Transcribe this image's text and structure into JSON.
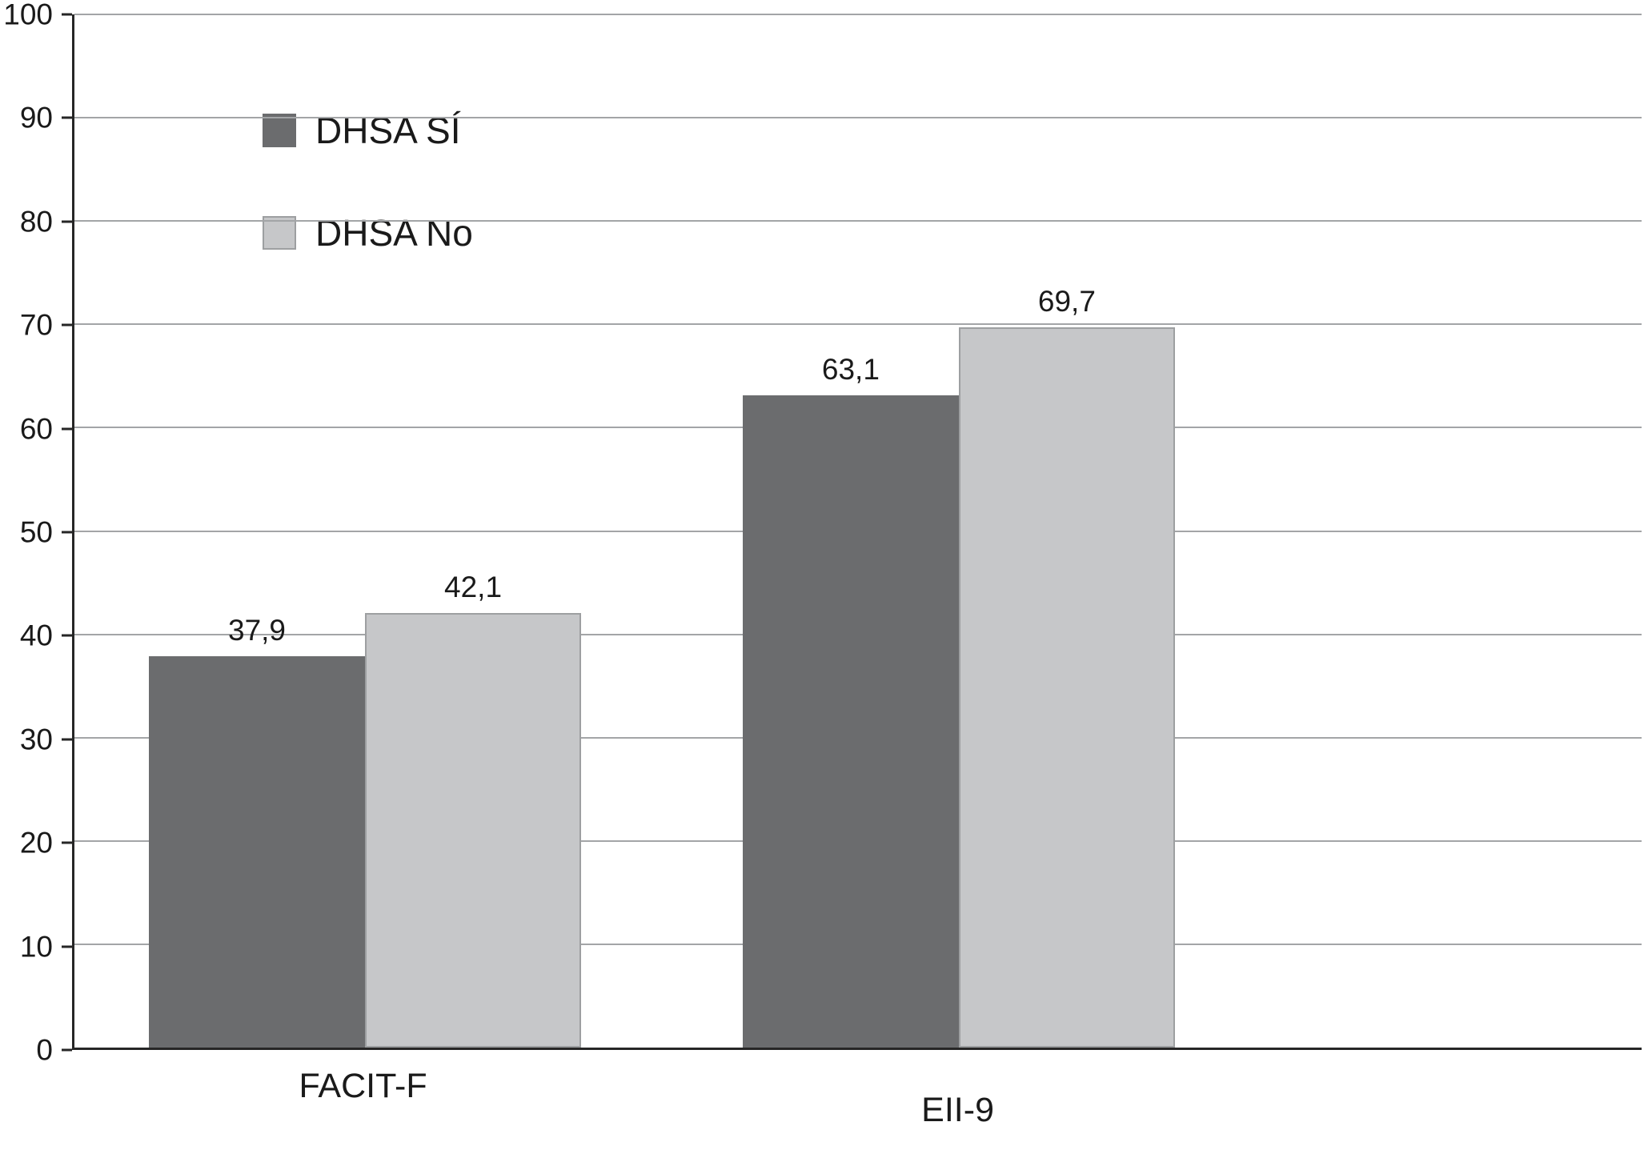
{
  "chart_data": {
    "type": "bar",
    "categories": [
      "FACIT-F",
      "EII-9"
    ],
    "series": [
      {
        "name": "DHSA SÍ",
        "values": [
          37.9,
          63.1
        ],
        "value_labels": [
          "37,9",
          "63,1"
        ],
        "color": "#6b6c6e",
        "border": ""
      },
      {
        "name": "DHSA No",
        "values": [
          42.1,
          69.7
        ],
        "value_labels": [
          "42,1",
          "69,7"
        ],
        "color": "#c6c7c9",
        "border": "#9d9fa1"
      }
    ],
    "title": "",
    "xlabel": "",
    "ylabel": "",
    "ylim": [
      0,
      100
    ],
    "ytick_labels": [
      "0",
      "10",
      "20",
      "30",
      "40",
      "50",
      "60",
      "70",
      "80",
      "90",
      "100"
    ],
    "grid": "horizontal",
    "legend_position": "upper-left-inside"
  },
  "colors": {
    "background": "#ffffff",
    "grid": "#a3a5a7",
    "axis": "#262626",
    "text": "#1a1a1a",
    "series_dark": "#6b6c6e",
    "series_light": "#c6c7c9"
  }
}
